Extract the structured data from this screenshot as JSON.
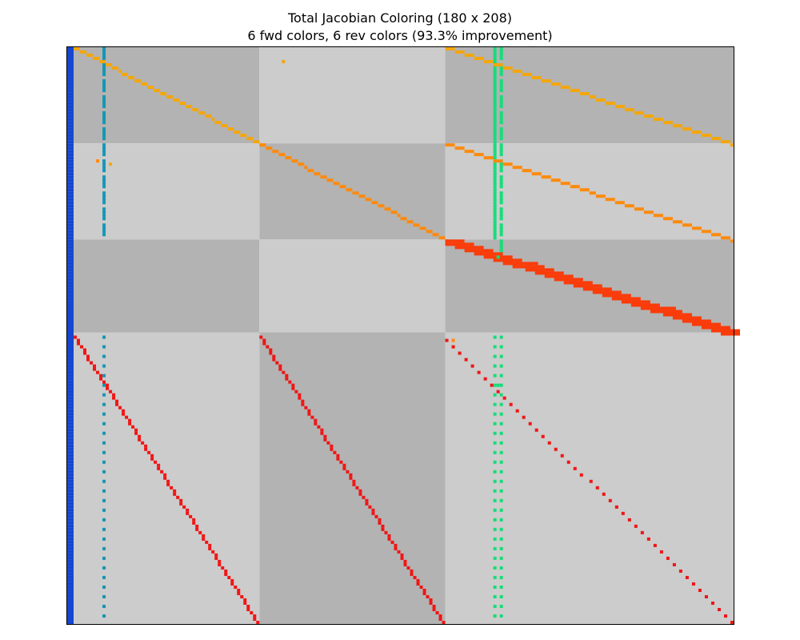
{
  "chart_data": {
    "type": "heatmap",
    "title": "Total Jacobian Coloring (180 x 208)",
    "subtitle": "6 fwd colors, 6 rev colors (93.3% improvement)",
    "rows": 180,
    "cols": 208,
    "grid": false,
    "background_colors": {
      "light": "#cccccc",
      "dark": "#b3b3b3"
    },
    "block_col_bounds": [
      0,
      60,
      118,
      208
    ],
    "block_row_bounds": [
      0,
      30,
      60,
      89,
      180
    ],
    "block_shades": [
      [
        "dark",
        "light",
        "dark"
      ],
      [
        "light",
        "dark",
        "light"
      ],
      [
        "dark",
        "light",
        "dark"
      ],
      [
        "light",
        "dark",
        "light"
      ]
    ],
    "color_palette": {
      "blue": "#1446d2",
      "teal": "#1496b4",
      "green": "#16dc78",
      "orange": "#ff8a0c",
      "amber": "#f5a60a",
      "red": "#f01414",
      "redorange": "#fa3c0a"
    },
    "features": [
      {
        "kind": "column",
        "col": 0,
        "rows": [
          0,
          180
        ],
        "color": "blue"
      },
      {
        "kind": "column",
        "col": 1,
        "rows": [
          0,
          180
        ],
        "color": "blue"
      },
      {
        "kind": "column",
        "col": 11,
        "rows": [
          0,
          60
        ],
        "color": "teal",
        "dashed": true
      },
      {
        "kind": "column",
        "col": 11,
        "rows": [
          90,
          180
        ],
        "color": "teal",
        "dotted": true
      },
      {
        "kind": "column",
        "col": 133,
        "rows": [
          0,
          60
        ],
        "color": "green"
      },
      {
        "kind": "column",
        "col": 135,
        "rows": [
          0,
          66
        ],
        "color": "green",
        "dashed": true
      },
      {
        "kind": "column",
        "col": 133,
        "rows": [
          90,
          180
        ],
        "color": "green",
        "dotted": true
      },
      {
        "kind": "column",
        "col": 135,
        "rows": [
          90,
          180
        ],
        "color": "green",
        "dotted": true
      },
      {
        "kind": "diagonal",
        "start": [
          0,
          2
        ],
        "end": [
          30,
          60
        ],
        "color": "amber"
      },
      {
        "kind": "diagonal",
        "start": [
          30,
          60
        ],
        "end": [
          60,
          118
        ],
        "color": "orange"
      },
      {
        "kind": "diagonal",
        "start": [
          0,
          118
        ],
        "end": [
          30,
          207
        ],
        "color": "amber"
      },
      {
        "kind": "diagonal",
        "start": [
          30,
          118
        ],
        "end": [
          60,
          207
        ],
        "color": "orange"
      },
      {
        "kind": "diagonal",
        "start": [
          60,
          118
        ],
        "end": [
          89,
          207
        ],
        "color": "redorange",
        "thickness": 2
      },
      {
        "kind": "diagonal",
        "start": [
          90,
          2
        ],
        "end": [
          179,
          59
        ],
        "color": "red"
      },
      {
        "kind": "diagonal",
        "start": [
          90,
          60
        ],
        "end": [
          179,
          117
        ],
        "color": "red"
      },
      {
        "kind": "diagonal",
        "start": [
          91,
          118
        ],
        "end": [
          179,
          207
        ],
        "color": "red",
        "step": 2
      },
      {
        "kind": "cell",
        "row": 4,
        "col": 67,
        "color": "amber"
      },
      {
        "kind": "cell",
        "row": 35,
        "col": 9,
        "color": "orange"
      },
      {
        "kind": "cell",
        "row": 36,
        "col": 13,
        "color": "amber"
      },
      {
        "kind": "cell",
        "row": 65,
        "col": 134,
        "color": "green"
      },
      {
        "kind": "cell",
        "row": 105,
        "col": 134,
        "color": "green"
      },
      {
        "kind": "cell",
        "row": 91,
        "col": 120,
        "color": "orange"
      }
    ]
  }
}
